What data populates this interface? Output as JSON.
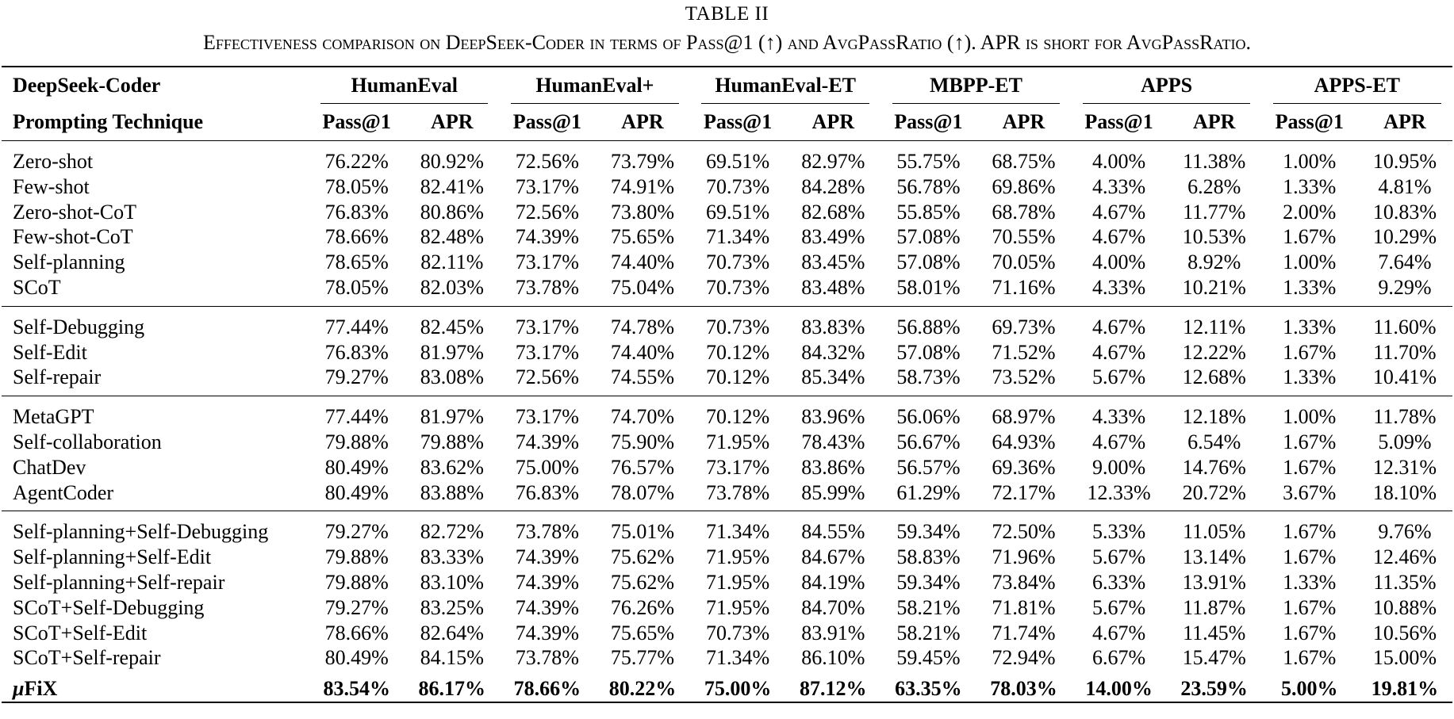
{
  "caption": {
    "title": "TABLE II",
    "text": "Effectiveness comparison on DeepSeek-Coder in terms of Pass@1 (↑) and AvgPassRatio (↑). APR is short for AvgPassRatio."
  },
  "header": {
    "model_label": "DeepSeek-Coder",
    "technique_label": "Prompting Technique",
    "benchmarks": [
      "HumanEval",
      "HumanEval+",
      "HumanEval-ET",
      "MBPP-ET",
      "APPS",
      "APPS-ET"
    ],
    "metric1": "Pass@1",
    "metric2": "APR"
  },
  "groups": [
    {
      "rows": [
        {
          "name": "Zero-shot",
          "values": [
            "76.22%",
            "80.92%",
            "72.56%",
            "73.79%",
            "69.51%",
            "82.97%",
            "55.75%",
            "68.75%",
            "4.00%",
            "11.38%",
            "1.00%",
            "10.95%"
          ]
        },
        {
          "name": "Few-shot",
          "values": [
            "78.05%",
            "82.41%",
            "73.17%",
            "74.91%",
            "70.73%",
            "84.28%",
            "56.78%",
            "69.86%",
            "4.33%",
            "6.28%",
            "1.33%",
            "4.81%"
          ]
        },
        {
          "name": "Zero-shot-CoT",
          "values": [
            "76.83%",
            "80.86%",
            "72.56%",
            "73.80%",
            "69.51%",
            "82.68%",
            "55.85%",
            "68.78%",
            "4.67%",
            "11.77%",
            "2.00%",
            "10.83%"
          ]
        },
        {
          "name": "Few-shot-CoT",
          "values": [
            "78.66%",
            "82.48%",
            "74.39%",
            "75.65%",
            "71.34%",
            "83.49%",
            "57.08%",
            "70.55%",
            "4.67%",
            "10.53%",
            "1.67%",
            "10.29%"
          ]
        },
        {
          "name": "Self-planning",
          "values": [
            "78.65%",
            "82.11%",
            "73.17%",
            "74.40%",
            "70.73%",
            "83.45%",
            "57.08%",
            "70.05%",
            "4.00%",
            "8.92%",
            "1.00%",
            "7.64%"
          ]
        },
        {
          "name": "SCoT",
          "values": [
            "78.05%",
            "82.03%",
            "73.78%",
            "75.04%",
            "70.73%",
            "83.48%",
            "58.01%",
            "71.16%",
            "4.33%",
            "10.21%",
            "1.33%",
            "9.29%"
          ]
        }
      ]
    },
    {
      "rows": [
        {
          "name": "Self-Debugging",
          "values": [
            "77.44%",
            "82.45%",
            "73.17%",
            "74.78%",
            "70.73%",
            "83.83%",
            "56.88%",
            "69.73%",
            "4.67%",
            "12.11%",
            "1.33%",
            "11.60%"
          ]
        },
        {
          "name": "Self-Edit",
          "values": [
            "76.83%",
            "81.97%",
            "73.17%",
            "74.40%",
            "70.12%",
            "84.32%",
            "57.08%",
            "71.52%",
            "4.67%",
            "12.22%",
            "1.67%",
            "11.70%"
          ]
        },
        {
          "name": "Self-repair",
          "values": [
            "79.27%",
            "83.08%",
            "72.56%",
            "74.55%",
            "70.12%",
            "85.34%",
            "58.73%",
            "73.52%",
            "5.67%",
            "12.68%",
            "1.33%",
            "10.41%"
          ]
        }
      ]
    },
    {
      "rows": [
        {
          "name": "MetaGPT",
          "values": [
            "77.44%",
            "81.97%",
            "73.17%",
            "74.70%",
            "70.12%",
            "83.96%",
            "56.06%",
            "68.97%",
            "4.33%",
            "12.18%",
            "1.00%",
            "11.78%"
          ]
        },
        {
          "name": "Self-collaboration",
          "values": [
            "79.88%",
            "79.88%",
            "74.39%",
            "75.90%",
            "71.95%",
            "78.43%",
            "56.67%",
            "64.93%",
            "4.67%",
            "6.54%",
            "1.67%",
            "5.09%"
          ]
        },
        {
          "name": "ChatDev",
          "values": [
            "80.49%",
            "83.62%",
            "75.00%",
            "76.57%",
            "73.17%",
            "83.86%",
            "56.57%",
            "69.36%",
            "9.00%",
            "14.76%",
            "1.67%",
            "12.31%"
          ]
        },
        {
          "name": "AgentCoder",
          "values": [
            "80.49%",
            "83.88%",
            "76.83%",
            "78.07%",
            "73.78%",
            "85.99%",
            "61.29%",
            "72.17%",
            "12.33%",
            "20.72%",
            "3.67%",
            "18.10%"
          ]
        }
      ]
    },
    {
      "rows": [
        {
          "name": "Self-planning+Self-Debugging",
          "values": [
            "79.27%",
            "82.72%",
            "73.78%",
            "75.01%",
            "71.34%",
            "84.55%",
            "59.34%",
            "72.50%",
            "5.33%",
            "11.05%",
            "1.67%",
            "9.76%"
          ]
        },
        {
          "name": "Self-planning+Self-Edit",
          "values": [
            "79.88%",
            "83.33%",
            "74.39%",
            "75.62%",
            "71.95%",
            "84.67%",
            "58.83%",
            "71.96%",
            "5.67%",
            "13.14%",
            "1.67%",
            "12.46%"
          ]
        },
        {
          "name": "Self-planning+Self-repair",
          "values": [
            "79.88%",
            "83.10%",
            "74.39%",
            "75.62%",
            "71.95%",
            "84.19%",
            "59.34%",
            "73.84%",
            "6.33%",
            "13.91%",
            "1.33%",
            "11.35%"
          ]
        },
        {
          "name": "SCoT+Self-Debugging",
          "values": [
            "79.27%",
            "83.25%",
            "74.39%",
            "76.26%",
            "71.95%",
            "84.70%",
            "58.21%",
            "71.81%",
            "5.67%",
            "11.87%",
            "1.67%",
            "10.88%"
          ]
        },
        {
          "name": "SCoT+Self-Edit",
          "values": [
            "78.66%",
            "82.64%",
            "74.39%",
            "75.65%",
            "70.73%",
            "83.91%",
            "58.21%",
            "71.74%",
            "4.67%",
            "11.45%",
            "1.67%",
            "10.56%"
          ]
        },
        {
          "name": "SCoT+Self-repair",
          "values": [
            "80.49%",
            "84.15%",
            "73.78%",
            "75.77%",
            "71.34%",
            "86.10%",
            "59.45%",
            "72.94%",
            "6.67%",
            "15.47%",
            "1.67%",
            "15.00%"
          ]
        }
      ]
    }
  ],
  "final_row": {
    "name_prefix": "μ",
    "name_rest": "FiX",
    "values": [
      "83.54%",
      "86.17%",
      "78.66%",
      "80.22%",
      "75.00%",
      "87.12%",
      "63.35%",
      "78.03%",
      "14.00%",
      "23.59%",
      "5.00%",
      "19.81%"
    ]
  }
}
